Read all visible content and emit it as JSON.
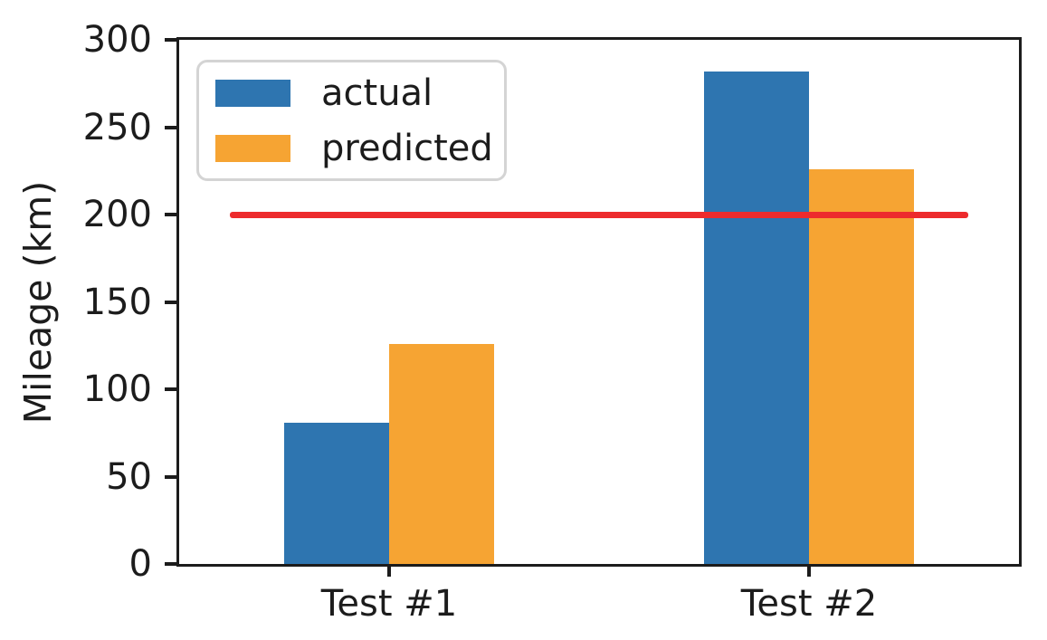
{
  "chart_data": {
    "type": "bar",
    "categories": [
      "Test #1",
      "Test #2"
    ],
    "series": [
      {
        "name": "actual",
        "color": "#2E75B0",
        "values": [
          81,
          282
        ]
      },
      {
        "name": "predicted",
        "color": "#F6A433",
        "values": [
          126,
          226
        ]
      }
    ],
    "title": "",
    "xlabel": "",
    "ylabel": "Mileage (km)",
    "ylim": [
      0,
      300
    ],
    "yticks": [
      0,
      50,
      100,
      150,
      200,
      250,
      300
    ],
    "grid": false,
    "legend": {
      "position": "upper-left",
      "entries": [
        "actual",
        "predicted"
      ]
    },
    "reference_line": {
      "y": 200,
      "color": "#ED2B2D",
      "x_span_data": [
        -0.38,
        1.38
      ]
    }
  },
  "colors": {
    "text": "#1c1c1c",
    "spine": "#1c1c1c",
    "legend_border": "#d4d4d4",
    "background": "#ffffff"
  }
}
